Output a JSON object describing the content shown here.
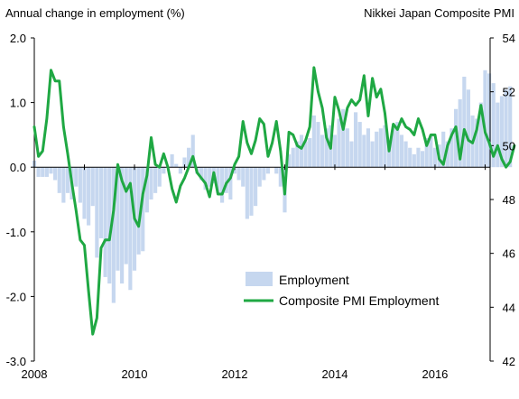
{
  "chart_data": {
    "type": "bar",
    "left_axis_title": "Annual change in employment  (%)",
    "right_axis_title": "Nikkei Japan Composite PMI",
    "x_tick_labels": [
      "2008",
      "2010",
      "2012",
      "2014",
      "2016"
    ],
    "x_tick_years": [
      2008,
      2010,
      2012,
      2014,
      2016
    ],
    "xlim": [
      2008.0,
      2017.1
    ],
    "left_axis": {
      "ylim": [
        -3.0,
        2.0
      ],
      "ticks": [
        "-3.0",
        "-2.0",
        "-1.0",
        "0.0",
        "1.0",
        "2.0"
      ]
    },
    "right_axis": {
      "ylim": [
        42,
        54
      ],
      "ticks": [
        "42",
        "44",
        "46",
        "48",
        "50",
        "52",
        "54"
      ]
    },
    "legend_position": "bottom-right",
    "colors": {
      "bars": "#c6d7ef",
      "line": "#1fa843",
      "axis": "#000000"
    },
    "series": [
      {
        "name": "Employment",
        "axis": "left",
        "type": "bar",
        "start_year": 2008,
        "frequency": "monthly",
        "values": [
          0.1,
          -0.15,
          -0.15,
          -0.15,
          -0.1,
          -0.2,
          -0.4,
          -0.55,
          -0.4,
          -0.5,
          -0.3,
          -0.55,
          -0.8,
          -0.9,
          -0.6,
          -1.4,
          -1.1,
          -1.7,
          -1.8,
          -2.1,
          -1.6,
          -1.8,
          -1.5,
          -1.9,
          -1.6,
          -1.35,
          -1.3,
          -0.7,
          -0.5,
          -0.4,
          -0.3,
          -0.1,
          0.0,
          0.2,
          0.05,
          -0.1,
          0.15,
          0.3,
          0.5,
          -0.1,
          -0.2,
          -0.35,
          -0.3,
          -0.25,
          -0.4,
          -0.55,
          -0.4,
          -0.5,
          -0.1,
          -0.2,
          -0.3,
          -0.8,
          -0.75,
          -0.6,
          -0.3,
          -0.2,
          -0.1,
          0.0,
          -0.1,
          -0.3,
          -0.7,
          0.2,
          0.3,
          0.4,
          0.5,
          0.4,
          0.45,
          0.8,
          0.7,
          0.5,
          0.6,
          0.65,
          0.5,
          0.75,
          0.9,
          0.6,
          0.4,
          0.85,
          0.7,
          0.5,
          0.6,
          0.4,
          0.55,
          0.6,
          0.65,
          0.4,
          0.6,
          0.7,
          0.5,
          0.4,
          0.3,
          0.2,
          0.3,
          0.25,
          0.45,
          0.5,
          0.3,
          0.35,
          0.55,
          0.4,
          0.6,
          0.9,
          1.05,
          1.4,
          1.2,
          0.8,
          0.75,
          1.0,
          1.5,
          1.45,
          1.3,
          1.0,
          1.1,
          1.2,
          1.25
        ]
      },
      {
        "name": "Composite PMI Employment",
        "axis": "right",
        "type": "line",
        "start_year": 2008,
        "frequency": "monthly",
        "values": [
          50.7,
          49.6,
          49.8,
          51.0,
          52.8,
          52.4,
          52.4,
          50.7,
          49.7,
          48.6,
          47.6,
          46.5,
          46.3,
          44.6,
          43.0,
          43.6,
          46.2,
          46.5,
          46.5,
          47.6,
          49.3,
          48.7,
          48.3,
          48.6,
          47.3,
          47.0,
          48.2,
          48.9,
          50.3,
          49.3,
          49.2,
          49.7,
          49.2,
          48.4,
          47.9,
          48.5,
          48.8,
          49.2,
          49.6,
          49.0,
          48.8,
          48.6,
          48.1,
          49.0,
          48.2,
          48.2,
          48.6,
          48.8,
          49.3,
          49.6,
          50.9,
          50.1,
          49.7,
          50.2,
          51.0,
          50.8,
          49.6,
          50.1,
          50.9,
          49.8,
          48.2,
          50.5,
          50.4,
          50.0,
          49.9,
          50.2,
          50.7,
          52.9,
          52.0,
          51.4,
          50.3,
          49.9,
          51.8,
          51.3,
          50.6,
          51.4,
          51.7,
          51.5,
          51.7,
          52.6,
          51.1,
          52.5,
          51.8,
          52.1,
          51.2,
          49.8,
          50.8,
          50.6,
          51.0,
          50.7,
          50.6,
          50.4,
          51.0,
          50.6,
          50.0,
          50.4,
          50.4,
          49.5,
          49.3,
          50.0,
          50.4,
          50.7,
          49.5,
          50.6,
          50.2,
          50.1,
          50.6,
          51.5,
          50.5,
          50.1,
          49.6,
          50.0,
          49.5,
          49.2,
          49.4,
          50.0
        ]
      }
    ]
  }
}
